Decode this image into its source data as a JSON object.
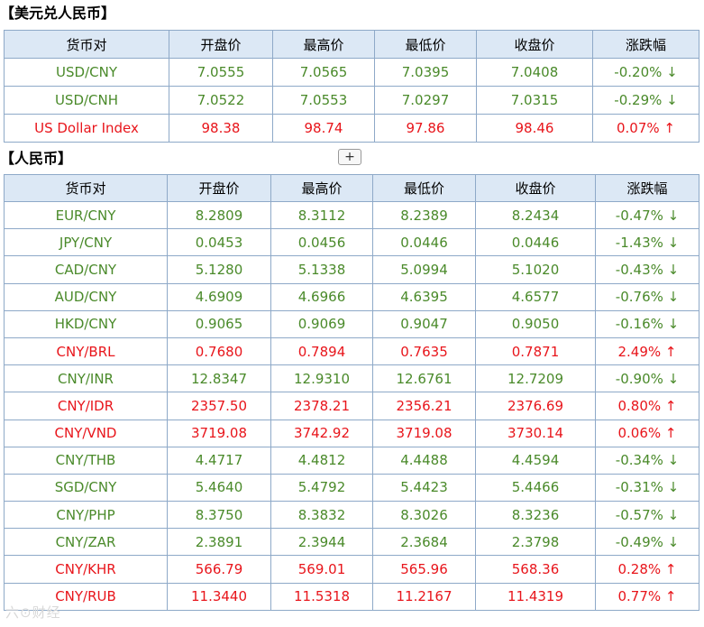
{
  "usd_section": {
    "title": "【美元兑人民币】",
    "headers": [
      "货币对",
      "开盘价",
      "最高价",
      "最低价",
      "收盘价",
      "涨跌幅"
    ],
    "rows": [
      {
        "pair": "USD/CNY",
        "open": "7.0555",
        "high": "7.0565",
        "low": "7.0395",
        "close": "7.0408",
        "change": "-0.20% ↓",
        "dir": "down"
      },
      {
        "pair": "USD/CNH",
        "open": "7.0522",
        "high": "7.0553",
        "low": "7.0297",
        "close": "7.0315",
        "change": "-0.29% ↓",
        "dir": "down"
      },
      {
        "pair": "US Dollar Index",
        "open": "98.38",
        "high": "98.74",
        "low": "97.86",
        "close": "98.46",
        "change": "0.07% ↑",
        "dir": "up"
      }
    ]
  },
  "rmb_section": {
    "title": "【人民币】",
    "expand_label": "+",
    "headers": [
      "货币对",
      "开盘价",
      "最高价",
      "最低价",
      "收盘价",
      "涨跌幅"
    ],
    "rows": [
      {
        "pair": "EUR/CNY",
        "open": "8.2809",
        "high": "8.3112",
        "low": "8.2389",
        "close": "8.2434",
        "change": "-0.47% ↓",
        "dir": "down"
      },
      {
        "pair": "JPY/CNY",
        "open": "0.0453",
        "high": "0.0456",
        "low": "0.0446",
        "close": "0.0446",
        "change": "-1.43% ↓",
        "dir": "down"
      },
      {
        "pair": "CAD/CNY",
        "open": "5.1280",
        "high": "5.1338",
        "low": "5.0994",
        "close": "5.1020",
        "change": "-0.43% ↓",
        "dir": "down"
      },
      {
        "pair": "AUD/CNY",
        "open": "4.6909",
        "high": "4.6966",
        "low": "4.6395",
        "close": "4.6577",
        "change": "-0.76% ↓",
        "dir": "down"
      },
      {
        "pair": "HKD/CNY",
        "open": "0.9065",
        "high": "0.9069",
        "low": "0.9047",
        "close": "0.9050",
        "change": "-0.16% ↓",
        "dir": "down"
      },
      {
        "pair": "CNY/BRL",
        "open": "0.7680",
        "high": "0.7894",
        "low": "0.7635",
        "close": "0.7871",
        "change": "2.49% ↑",
        "dir": "up"
      },
      {
        "pair": "CNY/INR",
        "open": "12.8347",
        "high": "12.9310",
        "low": "12.6761",
        "close": "12.7209",
        "change": "-0.90% ↓",
        "dir": "down"
      },
      {
        "pair": "CNY/IDR",
        "open": "2357.50",
        "high": "2378.21",
        "low": "2356.21",
        "close": "2376.69",
        "change": "0.80% ↑",
        "dir": "up"
      },
      {
        "pair": "CNY/VND",
        "open": "3719.08",
        "high": "3742.92",
        "low": "3719.08",
        "close": "3730.14",
        "change": "0.06% ↑",
        "dir": "up"
      },
      {
        "pair": "CNY/THB",
        "open": "4.4717",
        "high": "4.4812",
        "low": "4.4488",
        "close": "4.4594",
        "change": "-0.34% ↓",
        "dir": "down"
      },
      {
        "pair": "SGD/CNY",
        "open": "5.4640",
        "high": "5.4792",
        "low": "5.4423",
        "close": "5.4466",
        "change": "-0.31% ↓",
        "dir": "down"
      },
      {
        "pair": "CNY/PHP",
        "open": "8.3750",
        "high": "8.3832",
        "low": "8.3026",
        "close": "8.3236",
        "change": "-0.57% ↓",
        "dir": "down"
      },
      {
        "pair": "CNY/ZAR",
        "open": "2.3891",
        "high": "2.3944",
        "low": "2.3684",
        "close": "2.3798",
        "change": "-0.49% ↓",
        "dir": "down"
      },
      {
        "pair": "CNY/KHR",
        "open": "566.79",
        "high": "569.01",
        "low": "565.96",
        "close": "568.36",
        "change": "0.28% ↑",
        "dir": "up"
      },
      {
        "pair": "CNY/RUB",
        "open": "11.3440",
        "high": "11.5318",
        "low": "11.2167",
        "close": "11.4319",
        "change": "0.77% ↑",
        "dir": "up"
      }
    ]
  },
  "colors": {
    "up": "#e8151b",
    "down": "#4a8a2a",
    "header_bg": "#dce8f5",
    "border": "#8ea9c8"
  },
  "watermark": "六⊙财经"
}
